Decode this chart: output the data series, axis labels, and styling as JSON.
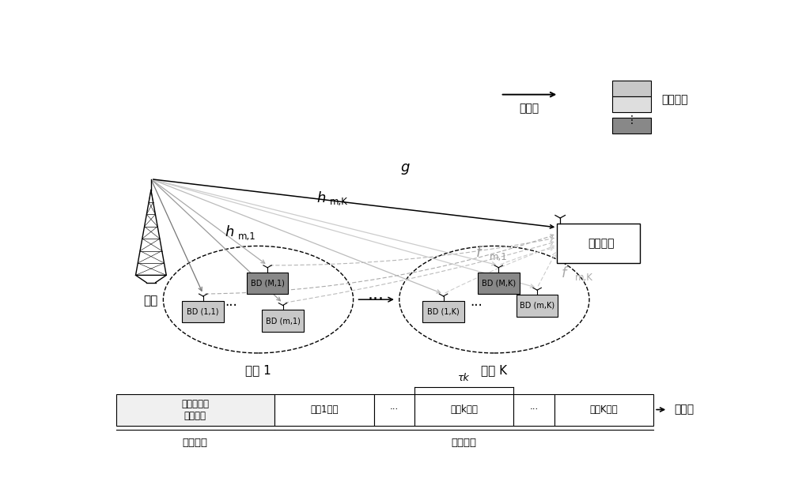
{
  "bg_color": "#ffffff",
  "tower_label": "基站",
  "main_rx_label": "主接收机",
  "cluster1_label": "集群 1",
  "clusterK_label": "集群 K",
  "label_g": "g",
  "label_hm1": "h",
  "label_hm1_sub": "m,1",
  "label_hmK": "h",
  "label_hmK_sub": "m,K",
  "label_fm1": "f",
  "label_fm1_sub": "m,1",
  "label_fmK": "f",
  "label_fmK_sub": "m,K",
  "legend_energy_flow": "能量流",
  "legend_energy_group": "能量小组",
  "frame_labels": [
    "信道估计和\n集群划分",
    "集群1传输",
    "···",
    "集群k传输",
    "···",
    "集群K传输"
  ],
  "frame_label_train": "训练阶段",
  "frame_label_trans": "传输阶段",
  "frame_label_struct": "帧结构",
  "frame_tau_label": "τk",
  "bd_labels_cluster1": [
    "BD (1,1)",
    "BD (M,1)",
    "BD (m,1)"
  ],
  "bd_labels_clusterK": [
    "BD (1,K)",
    "BD (M,K)",
    "BD (m,K)"
  ],
  "dark_gray": "#707070",
  "light_gray": "#b0b0b0",
  "box_gray_dark": "#888888",
  "box_gray_light": "#c8c8c8",
  "box_gray_medium": "#aaaaaa"
}
